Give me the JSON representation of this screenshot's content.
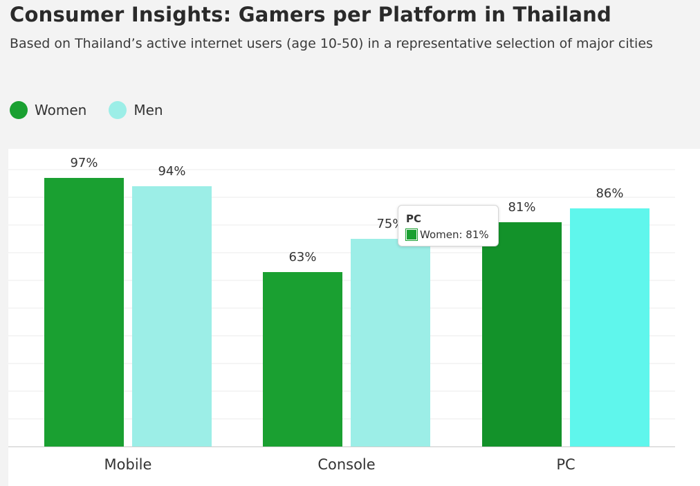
{
  "header": {
    "title": "Consumer Insights: Gamers per Platform in Thailand",
    "subtitle": "Based on Thailand’s active internet users (age 10-50) in a representative selection of major cities"
  },
  "legend": [
    {
      "label": "Women",
      "color": "#1aa031"
    },
    {
      "label": "Men",
      "color": "#9ceee7"
    }
  ],
  "tooltip": {
    "title": "PC",
    "label": "Women: 81%"
  },
  "chart_data": {
    "type": "bar",
    "title": "Consumer Insights: Gamers per Platform in Thailand",
    "subtitle": "Based on Thailand’s active internet users (age 10-50) in a representative selection of major cities",
    "categories": [
      "Mobile",
      "Console",
      "PC"
    ],
    "series": [
      {
        "name": "Women",
        "values": [
          97,
          63,
          81
        ],
        "color": "#1aa031",
        "labels": [
          "97%",
          "63%",
          "81%"
        ]
      },
      {
        "name": "Men",
        "values": [
          94,
          75,
          86
        ],
        "color": "#9ceee7",
        "labels": [
          "94%",
          "75%",
          "86%"
        ]
      }
    ],
    "highlight": {
      "category": "PC",
      "colors": {
        "Women": "#13922a",
        "Men": "#5ff6ec"
      }
    },
    "xlabel": "",
    "ylabel": "",
    "ylim": [
      0,
      100
    ],
    "grid": true,
    "legend_position": "top-left"
  }
}
